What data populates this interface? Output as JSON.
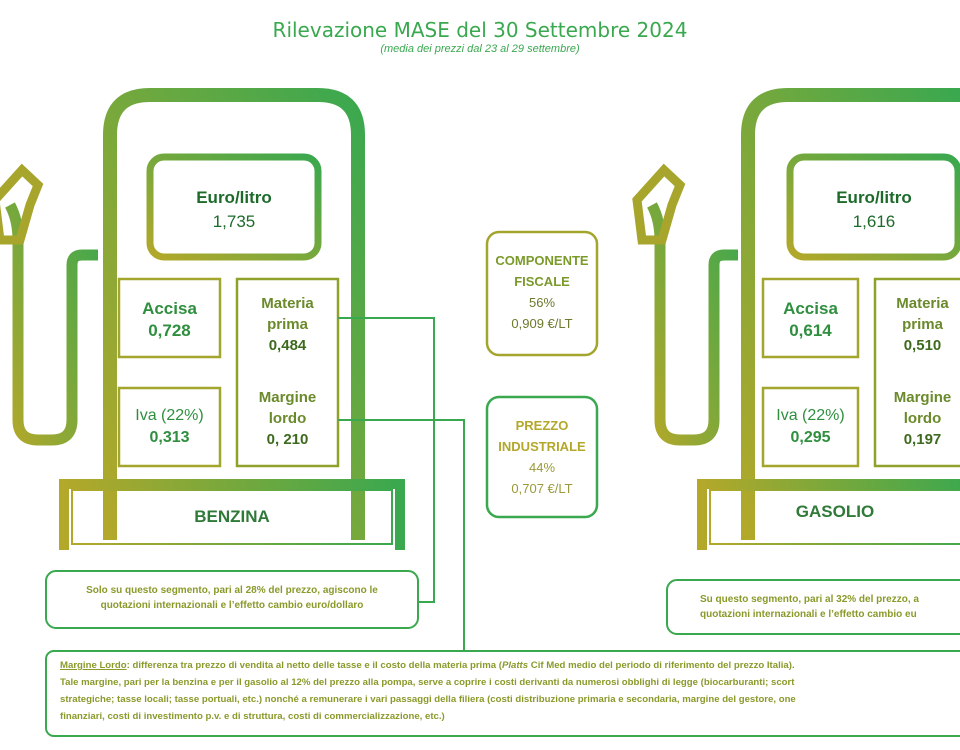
{
  "header": {
    "title": "Rilevazione MASE del 30 Settembre 2024",
    "subtitle": "(media dei prezzi dal 23 al 29 settembre)"
  },
  "benzina": {
    "price_label": "Euro/litro",
    "price_value": "1,735",
    "accisa_label": "Accisa",
    "accisa_value": "0,728",
    "materia_label_1": "Materia",
    "materia_label_2": "prima",
    "materia_value": "0,484",
    "iva_label": "Iva (22%)",
    "iva_value": "0,313",
    "margine_label_1": "Margine",
    "margine_label_2": "lordo",
    "margine_value": "0, 210",
    "base_label": "BENZINA",
    "note_line_1": "Solo su questo segmento, pari al 28% del prezzo, agiscono le",
    "note_line_2": "quotazioni internazionali e l’effetto cambio euro/dollaro"
  },
  "gasolio": {
    "price_label": "Euro/litro",
    "price_value": "1,616",
    "accisa_label": "Accisa",
    "accisa_value": "0,614",
    "materia_label_1": "Materia",
    "materia_label_2": "prima",
    "materia_value": "0,510",
    "iva_label": "Iva (22%)",
    "iva_value": "0,295",
    "margine_label_1": "Margine",
    "margine_label_2": "lordo",
    "margine_value": "0,197",
    "base_label": "GASOLIO",
    "note_line_1": "Su questo segmento, pari al 32% del prezzo, a",
    "note_line_2": "quotazioni internazionali e l’effetto cambio eu"
  },
  "componente_fiscale": {
    "line_1": "COMPONENTE",
    "line_2": "FISCALE",
    "percent": "56%",
    "value": "0,909 €/LT"
  },
  "prezzo_industriale": {
    "line_1": "PREZZO",
    "line_2": "INDUSTRIALE",
    "percent": "44%",
    "value": "0,707 €/LT"
  },
  "footnote": {
    "term": "Margine Lordo",
    "line_1_rest_a": ": differenza tra prezzo di vendita al netto delle tasse e il costo della materia prima (",
    "platts": "Platts",
    "line_1_rest_b": " Cif Med medio del periodo di riferimento del prezzo Italia).",
    "line_2": "Tale margine, pari per la benzina e per il gasolio al 12% del prezzo alla pompa, serve a coprire i costi derivanti da numerosi obblighi di legge (biocarburanti; scort",
    "line_3": "strategiche; tasse locali; tasse portuali, etc.) nonché a remunerare i vari passaggi della filiera (costi distribuzione primaria e secondaria, margine del gestore, one",
    "line_4": "finanziari, costi di investimento p.v. e di struttura, costi di commercializzazione, etc.)"
  },
  "colors": {
    "green": "#3aa84f",
    "olive": "#a3a52c",
    "dark_green": "#1d6b2a"
  }
}
